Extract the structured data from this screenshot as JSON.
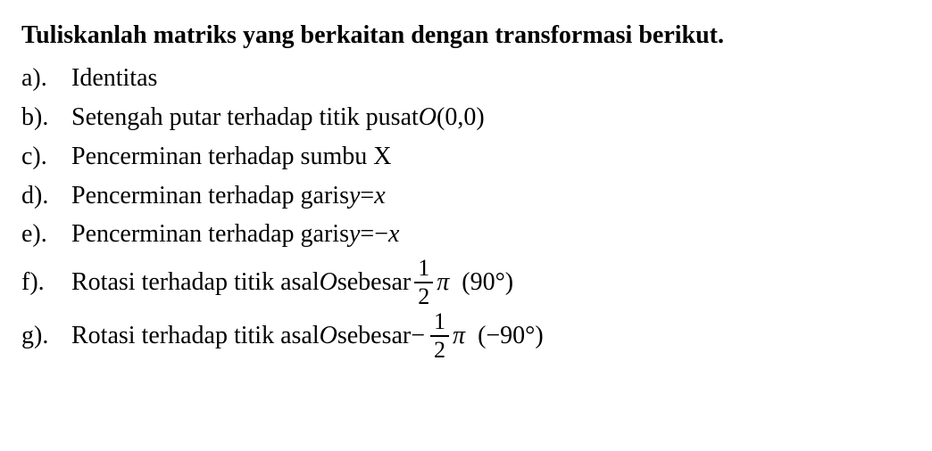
{
  "title": "Tuliskanlah matriks yang berkaitan dengan transformasi berikut.",
  "items": {
    "a": {
      "label": "a).",
      "text": "Identitas"
    },
    "b": {
      "label": "b).",
      "prefix": "Setengah putar terhadap titik pusat ",
      "point_var": "O ",
      "point_coords": "(0,0)"
    },
    "c": {
      "label": "c).",
      "text": "Pencerminan terhadap sumbu X"
    },
    "d": {
      "label": "d).",
      "prefix": "Pencerminan terhadap garis ",
      "eq_lhs": "y",
      "eq_mid": "=",
      "eq_rhs": "x"
    },
    "e": {
      "label": "e).",
      "prefix": "Pencerminan terhadap garis ",
      "eq_lhs": "y",
      "eq_mid": "=−",
      "eq_rhs": "x"
    },
    "f": {
      "label": "f).",
      "prefix": "Rotasi terhadap titik asal ",
      "origin": "O",
      "mid": " sebesar ",
      "num": "1",
      "den": "2",
      "pi": "π",
      "angle": "  (90°)"
    },
    "g": {
      "label": "g).",
      "prefix": "Rotasi terhadap titik asal ",
      "origin": "O",
      "mid": " sebesar ",
      "neg": "−",
      "num": "1",
      "den": "2",
      "pi": "π",
      "angle": "  (−90°)"
    }
  },
  "style": {
    "background_color": "#ffffff",
    "text_color": "#000000",
    "font_family": "Georgia, Times New Roman, serif",
    "title_fontsize": 28,
    "body_fontsize": 28,
    "title_weight": "bold"
  }
}
